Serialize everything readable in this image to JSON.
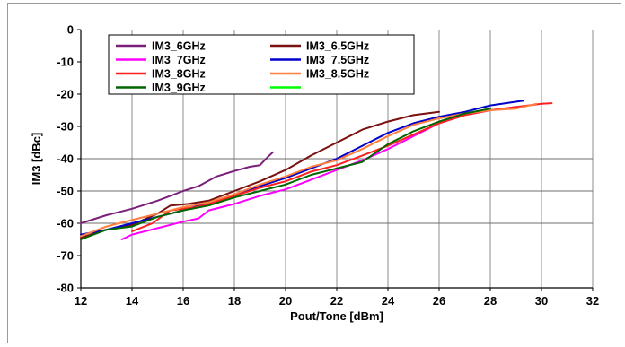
{
  "chart_data": {
    "type": "line",
    "title": "",
    "xlabel": "Pout/Tone [dBm]",
    "ylabel": "IM3 [dBc]",
    "xlim": [
      12,
      32
    ],
    "ylim": [
      -80,
      0
    ],
    "xticks": [
      12,
      14,
      16,
      18,
      20,
      22,
      24,
      26,
      28,
      30,
      32
    ],
    "yticks": [
      0,
      -10,
      -20,
      -30,
      -40,
      -50,
      -60,
      -70,
      -80
    ],
    "grid": "vertical lines at x ticks; horizontal lines at -40, -50, -60",
    "legend_position": "top-left",
    "legend_extra_entry_color": "#00ff00",
    "series": [
      {
        "name": "IM3_6GHz",
        "color": "#7a1f7a",
        "points": [
          [
            12,
            -60
          ],
          [
            13,
            -57.5
          ],
          [
            14,
            -55.5
          ],
          [
            15,
            -53
          ],
          [
            16,
            -50
          ],
          [
            16.6,
            -48.5
          ],
          [
            17.3,
            -45.5
          ],
          [
            18,
            -43.8
          ],
          [
            18.6,
            -42.5
          ],
          [
            19,
            -42
          ],
          [
            19.3,
            -39.5
          ],
          [
            19.5,
            -38
          ]
        ]
      },
      {
        "name": "IM3_6.5GHz",
        "color": "#7a1010",
        "points": [
          [
            12,
            -64.5
          ],
          [
            13,
            -62
          ],
          [
            14,
            -60.5
          ],
          [
            15,
            -57
          ],
          [
            15.5,
            -54.5
          ],
          [
            16.2,
            -54
          ],
          [
            17,
            -53
          ],
          [
            18,
            -50
          ],
          [
            19,
            -47
          ],
          [
            20,
            -43.5
          ],
          [
            21,
            -39
          ],
          [
            22,
            -35
          ],
          [
            23,
            -31
          ],
          [
            24,
            -28.5
          ],
          [
            25,
            -26.5
          ],
          [
            26,
            -25.5
          ]
        ]
      },
      {
        "name": "IM3_7GHz",
        "color": "#ff00ff",
        "points": [
          [
            13.6,
            -65
          ],
          [
            14,
            -63.5
          ],
          [
            15,
            -61.5
          ],
          [
            16,
            -59.5
          ],
          [
            16.6,
            -58.5
          ],
          [
            17,
            -56
          ],
          [
            18,
            -54
          ],
          [
            19,
            -51.5
          ],
          [
            20,
            -49.5
          ],
          [
            21,
            -46.5
          ],
          [
            22,
            -43.5
          ],
          [
            23,
            -40.5
          ],
          [
            24,
            -37
          ],
          [
            25,
            -33
          ],
          [
            26,
            -29
          ],
          [
            27,
            -26.5
          ],
          [
            28,
            -25
          ],
          [
            29,
            -24
          ]
        ]
      },
      {
        "name": "IM3_7.5GHz",
        "color": "#0000cc",
        "points": [
          [
            12,
            -63.5
          ],
          [
            13,
            -62
          ],
          [
            14,
            -60
          ],
          [
            15,
            -58
          ],
          [
            16,
            -56
          ],
          [
            17,
            -53.5
          ],
          [
            18,
            -51.5
          ],
          [
            19,
            -48.5
          ],
          [
            20,
            -46
          ],
          [
            21,
            -43
          ],
          [
            22,
            -40
          ],
          [
            23,
            -36
          ],
          [
            24,
            -32
          ],
          [
            25,
            -29
          ],
          [
            26,
            -27
          ],
          [
            27,
            -25.5
          ],
          [
            28,
            -23.5
          ],
          [
            29.3,
            -22
          ]
        ]
      },
      {
        "name": "IM3_8GHz",
        "color": "#ff1f1f",
        "points": [
          [
            14,
            -62.5
          ],
          [
            14.8,
            -60
          ],
          [
            15.5,
            -56
          ],
          [
            16.5,
            -55
          ],
          [
            17,
            -54
          ],
          [
            18,
            -51.5
          ],
          [
            19,
            -49
          ],
          [
            20,
            -47
          ],
          [
            21,
            -44
          ],
          [
            22,
            -42
          ],
          [
            23,
            -39
          ],
          [
            24,
            -36
          ],
          [
            25,
            -32.5
          ],
          [
            26,
            -29
          ],
          [
            27,
            -26.5
          ],
          [
            28,
            -25
          ],
          [
            29,
            -24
          ],
          [
            30,
            -23
          ],
          [
            30.4,
            -22.8
          ]
        ]
      },
      {
        "name": "IM3_8.5GHz",
        "color": "#ff7f3f",
        "points": [
          [
            12,
            -64
          ],
          [
            13,
            -61
          ],
          [
            14,
            -59
          ],
          [
            15,
            -57
          ],
          [
            16,
            -55
          ],
          [
            17,
            -53.5
          ],
          [
            18,
            -51
          ],
          [
            19,
            -48
          ],
          [
            20,
            -45.5
          ],
          [
            21,
            -42.5
          ],
          [
            22,
            -40.5
          ],
          [
            23,
            -37
          ],
          [
            24,
            -33
          ],
          [
            25,
            -29.5
          ],
          [
            26,
            -27.5
          ],
          [
            27,
            -26
          ],
          [
            28,
            -25
          ],
          [
            29,
            -24.5
          ],
          [
            29.8,
            -23
          ]
        ]
      },
      {
        "name": "IM3_9GHz",
        "color": "#006600",
        "points": [
          [
            12,
            -65
          ],
          [
            13,
            -62
          ],
          [
            14,
            -61
          ],
          [
            15,
            -58
          ],
          [
            16,
            -56
          ],
          [
            17,
            -54.5
          ],
          [
            18,
            -52
          ],
          [
            19,
            -50
          ],
          [
            20,
            -48
          ],
          [
            21,
            -45
          ],
          [
            22,
            -43
          ],
          [
            23,
            -41
          ],
          [
            24,
            -35.5
          ],
          [
            25,
            -31.5
          ],
          [
            26,
            -28.5
          ],
          [
            27,
            -26
          ],
          [
            28,
            -24.5
          ]
        ]
      }
    ]
  }
}
